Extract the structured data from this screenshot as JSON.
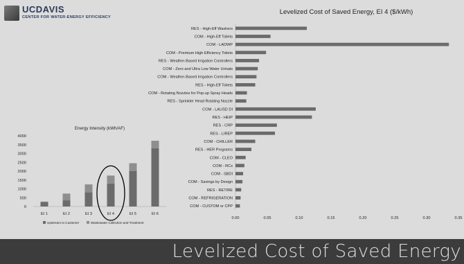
{
  "logo": {
    "primary": "UCDAVIS",
    "secondary": "CENTER FOR WATER-ENERGY EFFICIENCY"
  },
  "slide_title": "Levelized Cost of Saved Energy",
  "colors": {
    "bar": "#6b6b6b",
    "axis": "#bfbfbf",
    "text": "#222222",
    "highlight": "#000000"
  },
  "chart_data": [
    {
      "type": "bar",
      "orientation": "horizontal",
      "title": "Levelized Cost of Saved Energy, EI 4   ($/kWh)",
      "categories": [
        "RES - High-Eff Washers",
        "COM - High-Eff Toilets",
        "COM - LADWP",
        "COM - Premium High Efficiency Toilets",
        "RES - Weather-Based Irrigation Controllers",
        "COM - Zero and Ultra Low Water Urinals",
        "COM - Weather-Based Irrigation Controllers",
        "RES - High-Eff Toilets",
        "COM - Rotating Nozzles for Pop-up Spray Heads",
        "RES - Sprinkler Head Rotating Nozzle",
        "COM - LAUSD DI",
        "RES - HEIP",
        "RES - CRP",
        "RES - LIREP",
        "COM - CHILLER",
        "RES - HER Programs",
        "COM - CLEO",
        "COM - RCx",
        "COM - SBDI",
        "COM - Savings by Design",
        "RES - RETIRE",
        "COM - REFRIGERATION",
        "COM - CUSTOM or CPP"
      ],
      "values": [
        0.112,
        0.055,
        0.335,
        0.048,
        0.037,
        0.035,
        0.033,
        0.031,
        0.018,
        0.017,
        0.126,
        0.12,
        0.065,
        0.062,
        0.031,
        0.025,
        0.016,
        0.014,
        0.012,
        0.011,
        0.009,
        0.008,
        0.007
      ],
      "xlim": [
        0,
        0.35
      ],
      "xticks": [
        "0.00",
        "0.05",
        "0.10",
        "0.15",
        "0.20",
        "0.25",
        "0.30",
        "0.35"
      ],
      "grid": false
    },
    {
      "type": "bar",
      "stacked": true,
      "title": "Energy Intensity (kWh/AF)",
      "categories": [
        "EI 1",
        "EI 2",
        "EI 3",
        "EI 4",
        "EI 5",
        "EI 6"
      ],
      "series": [
        {
          "name": "Upstream to Customer",
          "values": [
            250,
            350,
            800,
            1300,
            2000,
            3300
          ]
        },
        {
          "name": "Wastewater Collection and Treatment",
          "values": [
            30,
            380,
            450,
            450,
            450,
            420
          ]
        }
      ],
      "ylim": [
        0,
        4000
      ],
      "yticks": [
        "0",
        "500",
        "1000",
        "1500",
        "2000",
        "2500",
        "3000",
        "3500",
        "4000"
      ],
      "highlight": "EI 4",
      "legend": "bottom",
      "grid": false
    }
  ]
}
